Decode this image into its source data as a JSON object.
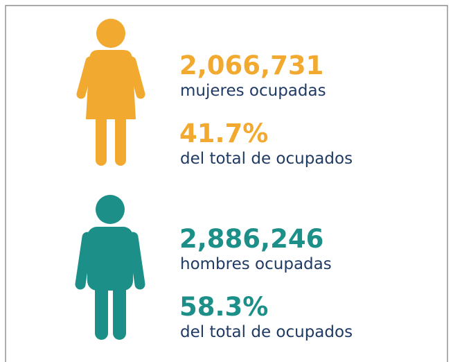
{
  "women": {
    "count": "2,066,731",
    "label": "mujeres ocupadas",
    "percent": "41.7%",
    "percent_label": "del total de ocupados"
  },
  "men": {
    "count": "2,886,246",
    "label": "hombres ocupadas",
    "percent": "58.3%",
    "percent_label": "del total de ocupados"
  }
}
